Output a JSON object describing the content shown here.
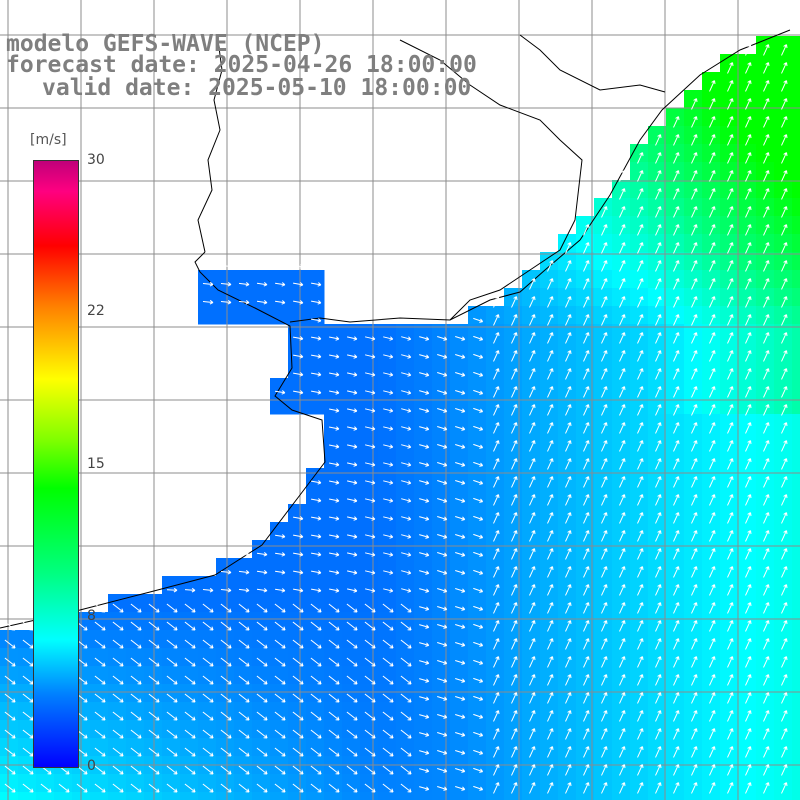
{
  "header": {
    "line1": "modelo GEFS-WAVE (NCEP)",
    "line2": "forecast date: 2025-04-26 18:00:00",
    "line3": "valid date: 2025-05-10 18:00:00"
  },
  "colorbar": {
    "unit": "[m/s]",
    "min": 0,
    "max": 30,
    "ticks": [
      "30",
      "22",
      "15",
      "8",
      "0"
    ],
    "tick_values": [
      30,
      22,
      15,
      8,
      0
    ]
  },
  "colors": {
    "land": "#ffffff",
    "grid": "#8c8c8c",
    "coast": "#000000",
    "arrow": "#ffffff",
    "title": "#7f7f7f"
  }
}
